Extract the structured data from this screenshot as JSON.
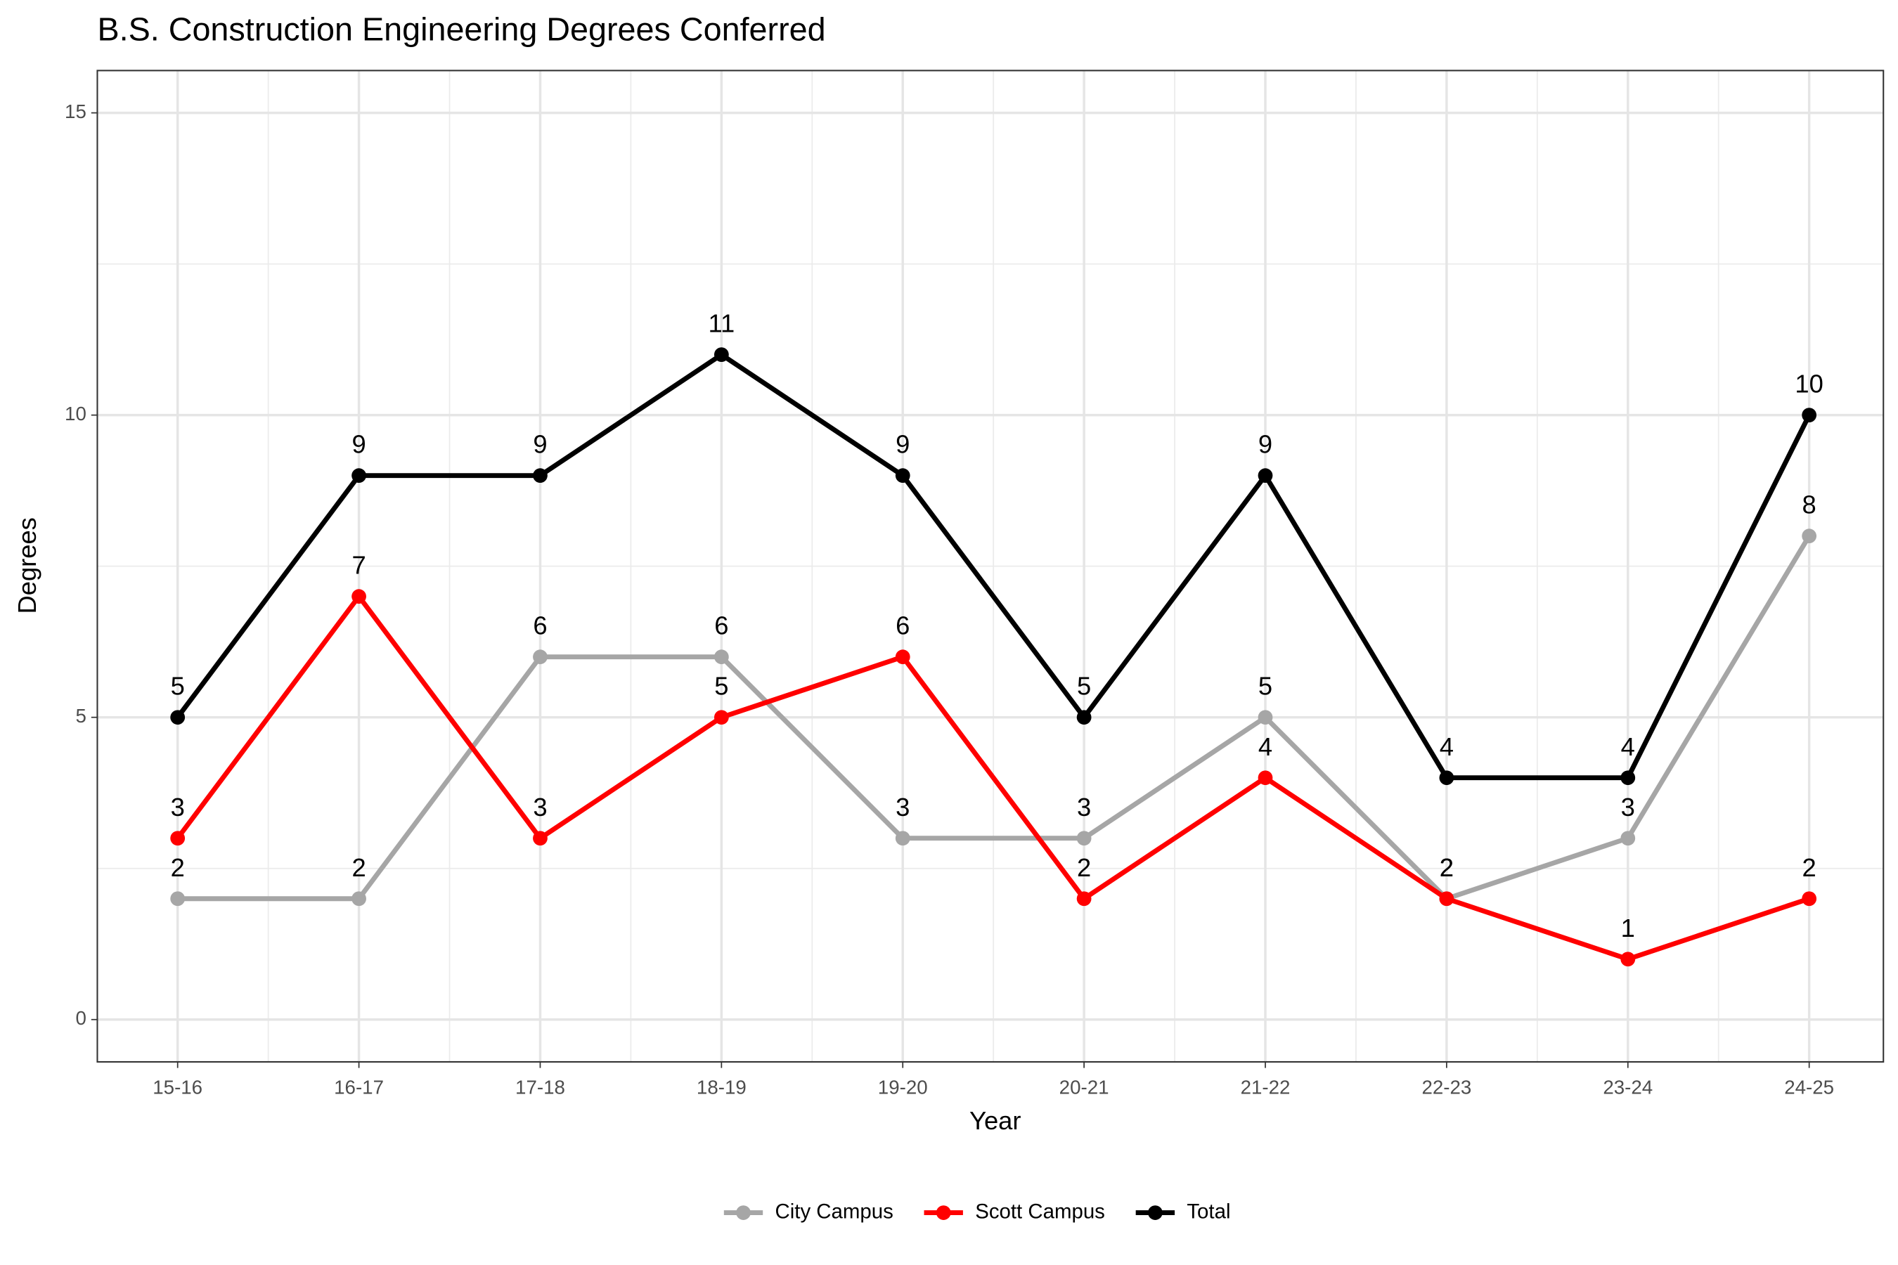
{
  "chart_data": {
    "type": "line",
    "title": "B.S. Construction Engineering Degrees Conferred",
    "x_label": "Year",
    "y_label": "Degrees",
    "categories": [
      "15-16",
      "16-17",
      "17-18",
      "18-19",
      "19-20",
      "20-21",
      "21-22",
      "22-23",
      "23-24",
      "24-25"
    ],
    "series": [
      {
        "name": "City Campus",
        "color": "#a6a6a6",
        "values": [
          2,
          2,
          6,
          6,
          3,
          3,
          5,
          2,
          3,
          8
        ]
      },
      {
        "name": "Scott Campus",
        "color": "#ff0000",
        "values": [
          3,
          7,
          3,
          5,
          6,
          2,
          4,
          2,
          1,
          2
        ]
      },
      {
        "name": "Total",
        "color": "#000000",
        "values": [
          5,
          9,
          9,
          11,
          9,
          5,
          9,
          4,
          4,
          10
        ]
      }
    ],
    "ylim": [
      -0.7,
      15.7
    ],
    "yticks": [
      0,
      5,
      10,
      15
    ],
    "grid": true,
    "legend": "bottom"
  }
}
